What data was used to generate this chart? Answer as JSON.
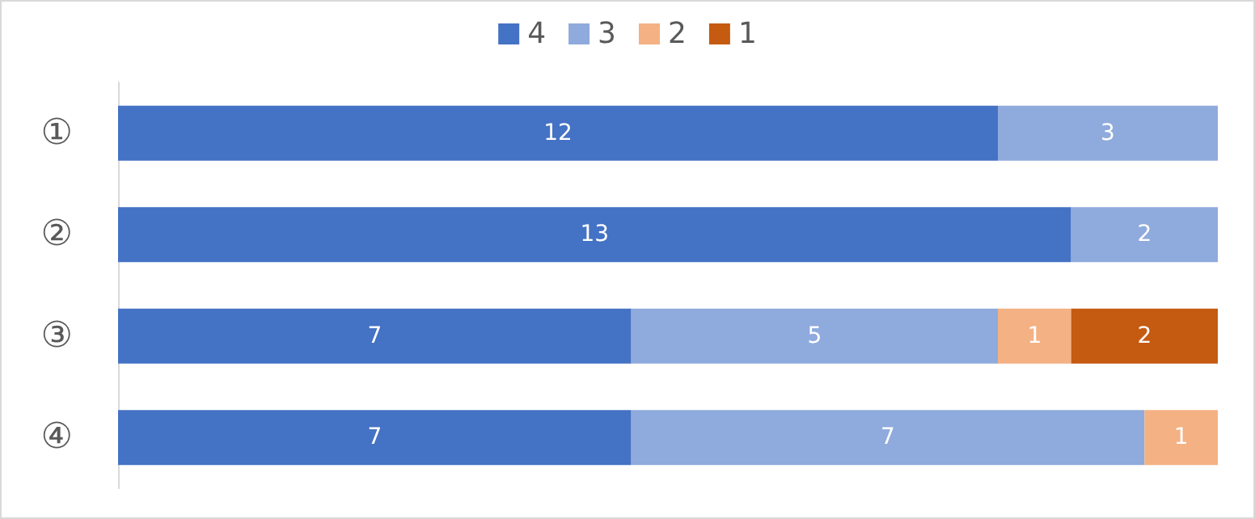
{
  "chart_data": {
    "type": "bar",
    "orientation": "horizontal",
    "stacked": true,
    "data_labels": true,
    "legend": "top",
    "grid": false,
    "categories": [
      "①",
      "②",
      "③",
      "④"
    ],
    "xlim": [
      0,
      15
    ],
    "series": [
      {
        "name": "4",
        "color": "#4472c4",
        "values": [
          12,
          13,
          7,
          7
        ]
      },
      {
        "name": "3",
        "color": "#8faadc",
        "values": [
          3,
          2,
          5,
          7
        ]
      },
      {
        "name": "2",
        "color": "#f4b183",
        "values": [
          null,
          null,
          1,
          1
        ]
      },
      {
        "name": "1",
        "color": "#c55a11",
        "values": [
          null,
          null,
          2,
          null
        ]
      }
    ]
  }
}
